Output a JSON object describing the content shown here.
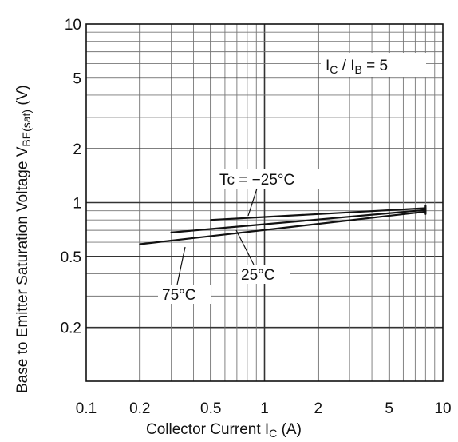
{
  "chart_data": {
    "type": "line",
    "x_scale": "log",
    "y_scale": "log",
    "xlim": [
      0.1,
      10
    ],
    "ylim": [
      0.1,
      10
    ],
    "grid": true,
    "x_ticks": [
      "0.1",
      "0.2",
      "0.5",
      "1",
      "2",
      "5",
      "10"
    ],
    "y_ticks": [
      "10",
      "5",
      "2",
      "1",
      "0.5",
      "0.2"
    ],
    "xlabel": {
      "main": "Collector Current  I",
      "sub": "C",
      "unit": "  (A)"
    },
    "ylabel": {
      "main": "Base to Emitter Saturation Voltage   V",
      "sub": "BE(sat)",
      "unit": "  (V)"
    },
    "condition": {
      "left": "I",
      "left_sub": "C",
      "slash": " / I",
      "right_sub": "B",
      "rest": " = 5"
    },
    "series": [
      {
        "name": "Tc = −25°C",
        "x": [
          0.5,
          8
        ],
        "y": [
          0.8,
          0.93
        ]
      },
      {
        "name": "25°C",
        "x": [
          0.3,
          8
        ],
        "y": [
          0.68,
          0.91
        ]
      },
      {
        "name": "75°C",
        "x": [
          0.2,
          8
        ],
        "y": [
          0.585,
          0.89
        ]
      }
    ]
  }
}
